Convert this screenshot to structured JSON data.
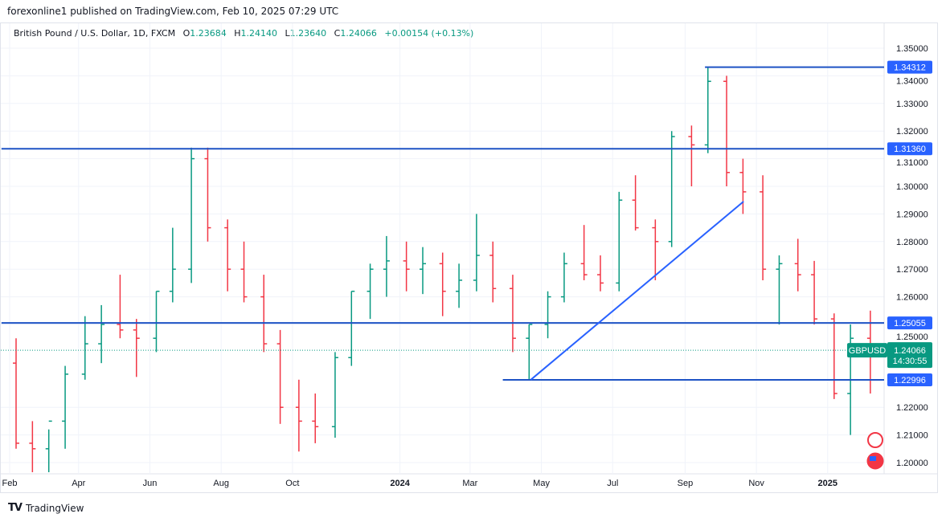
{
  "header": {
    "published": "forexonline1 published on TradingView.com, Feb 10, 2025 07:29 UTC"
  },
  "legend": {
    "symbol": "British Pound / U.S. Dollar, 1D, FXCM",
    "open_label": "O",
    "open": "1.23684",
    "high_label": "H",
    "high": "1.24140",
    "low_label": "L",
    "low": "1.23640",
    "close_label": "C",
    "close": "1.24066",
    "change": "+0.00154 (+0.13%)"
  },
  "footer": {
    "brand": "TradingView"
  },
  "chart_data": {
    "type": "ohlc",
    "symbol": "GBPUSD",
    "ylim": [
      1.195,
      1.352
    ],
    "y_ticks": [
      "1.35000",
      "1.34000",
      "1.33000",
      "1.32000",
      "1.31000",
      "1.30000",
      "1.29000",
      "1.28000",
      "1.27000",
      "1.26000",
      "1.25000",
      "1.22000",
      "1.21000",
      "1.20000"
    ],
    "x_ticks": [
      {
        "label": "Feb",
        "date": "2023-02-01",
        "bold": false
      },
      {
        "label": "Apr",
        "date": "2023-04-01",
        "bold": false
      },
      {
        "label": "Jun",
        "date": "2023-06-01",
        "bold": false
      },
      {
        "label": "Aug",
        "date": "2023-08-01",
        "bold": false
      },
      {
        "label": "Oct",
        "date": "2023-10-01",
        "bold": false
      },
      {
        "label": "2024",
        "date": "2024-01-01",
        "bold": true
      },
      {
        "label": "Mar",
        "date": "2024-03-01",
        "bold": false
      },
      {
        "label": "May",
        "date": "2024-05-01",
        "bold": false
      },
      {
        "label": "Jul",
        "date": "2024-07-01",
        "bold": false
      },
      {
        "label": "Sep",
        "date": "2024-09-01",
        "bold": false
      },
      {
        "label": "Nov",
        "date": "2024-11-01",
        "bold": false
      },
      {
        "label": "2025",
        "date": "2025-01-01",
        "bold": true
      }
    ],
    "colors": {
      "up": "#089981",
      "down": "#f23645",
      "drawing": "#2962ff",
      "line": "#1e53c5"
    },
    "bars": [
      [
        "2023-02-01",
        1.236,
        1.245,
        1.205,
        1.207
      ],
      [
        "2023-02-15",
        1.207,
        1.215,
        1.196,
        1.205
      ],
      [
        "2023-03-01",
        1.205,
        1.212,
        1.196,
        1.215
      ],
      [
        "2023-03-15",
        1.215,
        1.235,
        1.205,
        1.232
      ],
      [
        "2023-04-01",
        1.232,
        1.253,
        1.23,
        1.243
      ],
      [
        "2023-04-15",
        1.243,
        1.257,
        1.236,
        1.25
      ],
      [
        "2023-05-01",
        1.25,
        1.268,
        1.245,
        1.248
      ],
      [
        "2023-05-15",
        1.248,
        1.252,
        1.231,
        1.245
      ],
      [
        "2023-06-01",
        1.245,
        1.262,
        1.24,
        1.262
      ],
      [
        "2023-06-15",
        1.262,
        1.285,
        1.258,
        1.27
      ],
      [
        "2023-07-01",
        1.27,
        1.314,
        1.265,
        1.31
      ],
      [
        "2023-07-15",
        1.31,
        1.314,
        1.28,
        1.285
      ],
      [
        "2023-08-01",
        1.285,
        1.288,
        1.262,
        1.27
      ],
      [
        "2023-08-15",
        1.27,
        1.28,
        1.258,
        1.26
      ],
      [
        "2023-09-01",
        1.26,
        1.268,
        1.24,
        1.243
      ],
      [
        "2023-09-15",
        1.243,
        1.248,
        1.214,
        1.22
      ],
      [
        "2023-10-01",
        1.22,
        1.23,
        1.204,
        1.215
      ],
      [
        "2023-10-15",
        1.215,
        1.225,
        1.207,
        1.213
      ],
      [
        "2023-11-01",
        1.213,
        1.24,
        1.209,
        1.238
      ],
      [
        "2023-11-15",
        1.238,
        1.262,
        1.235,
        1.262
      ],
      [
        "2023-12-01",
        1.262,
        1.272,
        1.252,
        1.27
      ],
      [
        "2023-12-15",
        1.27,
        1.282,
        1.26,
        1.273
      ],
      [
        "2024-01-01",
        1.273,
        1.28,
        1.262,
        1.27
      ],
      [
        "2024-01-15",
        1.27,
        1.278,
        1.261,
        1.272
      ],
      [
        "2024-02-01",
        1.272,
        1.276,
        1.253,
        1.262
      ],
      [
        "2024-02-15",
        1.262,
        1.272,
        1.256,
        1.266
      ],
      [
        "2024-03-01",
        1.266,
        1.29,
        1.262,
        1.275
      ],
      [
        "2024-03-15",
        1.275,
        1.28,
        1.258,
        1.263
      ],
      [
        "2024-04-01",
        1.263,
        1.268,
        1.24,
        1.245
      ],
      [
        "2024-04-15",
        1.245,
        1.25,
        1.23,
        1.25
      ],
      [
        "2024-05-01",
        1.25,
        1.262,
        1.245,
        1.26
      ],
      [
        "2024-05-15",
        1.26,
        1.276,
        1.258,
        1.272
      ],
      [
        "2024-06-01",
        1.272,
        1.286,
        1.266,
        1.268
      ],
      [
        "2024-06-15",
        1.268,
        1.275,
        1.262,
        1.265
      ],
      [
        "2024-07-01",
        1.265,
        1.298,
        1.262,
        1.295
      ],
      [
        "2024-07-15",
        1.295,
        1.304,
        1.284,
        1.285
      ],
      [
        "2024-08-01",
        1.285,
        1.288,
        1.266,
        1.28
      ],
      [
        "2024-08-15",
        1.28,
        1.32,
        1.278,
        1.318
      ],
      [
        "2024-09-01",
        1.318,
        1.322,
        1.3,
        1.315
      ],
      [
        "2024-09-15",
        1.315,
        1.343,
        1.312,
        1.338
      ],
      [
        "2024-10-01",
        1.338,
        1.34,
        1.3,
        1.305
      ],
      [
        "2024-10-15",
        1.305,
        1.31,
        1.29,
        1.298
      ],
      [
        "2024-11-01",
        1.298,
        1.304,
        1.266,
        1.27
      ],
      [
        "2024-11-15",
        1.27,
        1.275,
        1.25,
        1.272
      ],
      [
        "2024-12-01",
        1.272,
        1.281,
        1.262,
        1.268
      ],
      [
        "2024-12-15",
        1.268,
        1.273,
        1.25,
        1.252
      ],
      [
        "2025-01-01",
        1.252,
        1.254,
        1.223,
        1.225
      ],
      [
        "2025-01-15",
        1.225,
        1.25,
        1.21,
        1.245
      ],
      [
        "2025-02-01",
        1.245,
        1.255,
        1.225,
        1.241
      ]
    ],
    "horizontal_lines": [
      {
        "price": 1.34312,
        "label": "1.34312",
        "from": "2024-09-18"
      },
      {
        "price": 1.3136,
        "label": "1.31360",
        "from": "2023-01-25"
      },
      {
        "price": 1.25055,
        "label": "1.25055",
        "from": "2023-01-25"
      },
      {
        "price": 1.22996,
        "label": "1.22996",
        "from": "2024-03-29"
      }
    ],
    "trend_line": {
      "from": [
        "2024-04-22",
        1.23
      ],
      "to": [
        "2024-10-21",
        1.2945
      ]
    },
    "last_price": {
      "price": 1.24066,
      "symbol_label": "GBPUSD",
      "price_label": "1.24066",
      "countdown": "14:30:55"
    }
  }
}
